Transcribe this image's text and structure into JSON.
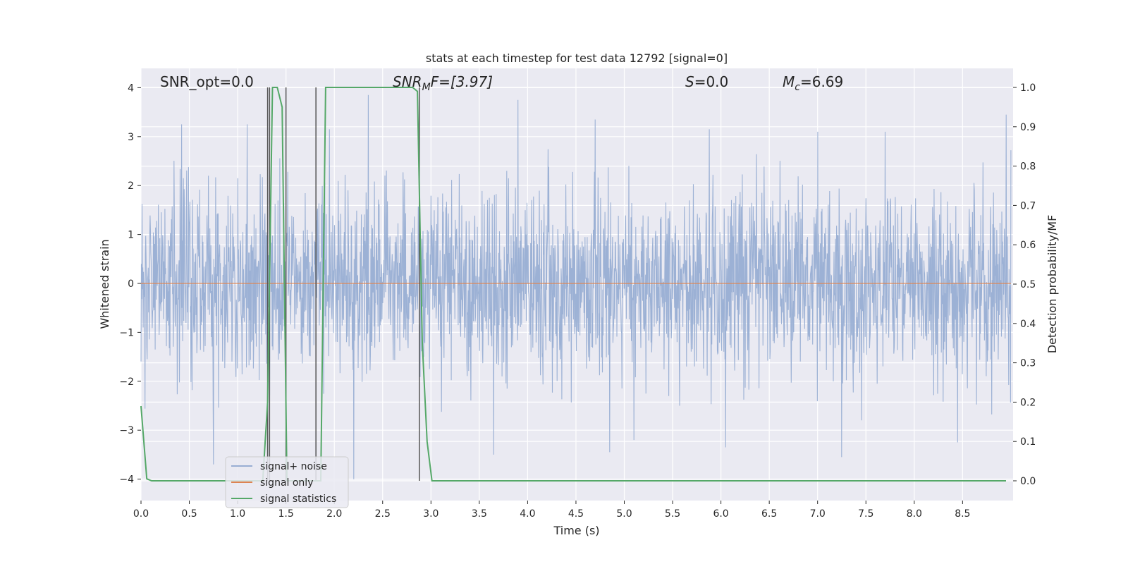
{
  "colors": {
    "plot_background": "#eaeaf2",
    "grid": "#ffffff",
    "noise": "#98aed3",
    "signal_only": "#dd8452",
    "statistics": "#55a868",
    "markers": "#555555"
  },
  "chart_data": {
    "type": "line",
    "title": "stats at each timestep for test data 12792 [signal=0]",
    "xlabel": "Time (s)",
    "ylabel": "Whitened strain",
    "y2label": "Detection probability/MF",
    "xlim": [
      0,
      9.0
    ],
    "ylim": [
      -4.4,
      4.4
    ],
    "y2lim": [
      -0.05,
      1.05
    ],
    "grid": true,
    "legend_position": "lower-left",
    "x_ticks": [
      0.0,
      0.5,
      1.0,
      1.5,
      2.0,
      2.5,
      3.0,
      3.5,
      4.0,
      4.5,
      5.0,
      5.5,
      6.0,
      6.5,
      7.0,
      7.5,
      8.0,
      8.5
    ],
    "x_tick_labels": [
      "0.0",
      "0.5",
      "1.0",
      "1.5",
      "2.0",
      "2.5",
      "3.0",
      "3.5",
      "4.0",
      "4.5",
      "5.0",
      "5.5",
      "6.0",
      "6.5",
      "7.0",
      "7.5",
      "8.0",
      "8.5"
    ],
    "y_ticks": [
      4,
      3,
      2,
      1,
      0,
      -1,
      -2,
      -3,
      -4
    ],
    "y_tick_labels": [
      "4",
      "3",
      "2",
      "1",
      "0",
      "−1",
      "−2",
      "−3",
      "−4"
    ],
    "y2_ticks": [
      1.0,
      0.9,
      0.8,
      0.7,
      0.6,
      0.5,
      0.4,
      0.3,
      0.2,
      0.1,
      0.0
    ],
    "y2_tick_labels": [
      "1.0",
      "0.9",
      "0.8",
      "0.7",
      "0.6",
      "0.5",
      "0.4",
      "0.3",
      "0.2",
      "0.1",
      "0.0"
    ],
    "annotations": {
      "snr_opt": "SNR_opt=0.0",
      "snr_mf_main": "SNR",
      "snr_mf_sub": "M",
      "snr_mf_rest": "F=[3.97]",
      "s_main": "S",
      "s_rest": "=0.0",
      "mc_main": "M",
      "mc_sub": "c",
      "mc_rest": "=6.69"
    },
    "series": [
      {
        "name": "signal+ noise",
        "kind": "noise_band",
        "typical_envelope": [
          -1.6,
          1.6
        ],
        "peaks": [
          {
            "x": 0.42,
            "y": 3.25
          },
          {
            "x": 1.1,
            "y": 3.25
          },
          {
            "x": 1.95,
            "y": 3.15
          },
          {
            "x": 2.35,
            "y": 3.85
          },
          {
            "x": 3.9,
            "y": 3.75
          },
          {
            "x": 4.7,
            "y": 3.35
          },
          {
            "x": 5.88,
            "y": 3.15
          },
          {
            "x": 7.0,
            "y": 3.1
          },
          {
            "x": 7.7,
            "y": 3.1
          },
          {
            "x": 8.95,
            "y": 3.45
          },
          {
            "x": 0.75,
            "y": -3.7
          },
          {
            "x": 2.2,
            "y": -4.0
          },
          {
            "x": 3.65,
            "y": -3.5
          },
          {
            "x": 4.85,
            "y": -3.45
          },
          {
            "x": 5.1,
            "y": -3.2
          },
          {
            "x": 6.05,
            "y": -3.35
          },
          {
            "x": 7.25,
            "y": -3.55
          },
          {
            "x": 8.45,
            "y": -3.25
          }
        ]
      },
      {
        "name": "signal only",
        "x": [
          0.0,
          9.0
        ],
        "y": [
          0.0,
          0.0
        ]
      },
      {
        "name": "signal statistics",
        "axis": "right",
        "x": [
          0.0,
          0.06,
          0.11,
          0.16,
          1.26,
          1.31,
          1.36,
          1.41,
          1.46,
          1.51,
          1.56,
          1.61,
          1.81,
          1.86,
          1.91,
          2.56,
          2.81,
          2.86,
          2.91,
          2.96,
          3.01,
          3.06,
          8.95
        ],
        "y": [
          0.19,
          0.005,
          0.0,
          0.0,
          0.0,
          0.2,
          1.0,
          1.0,
          0.95,
          0.0,
          0.0,
          0.0,
          0.0,
          0.0,
          1.0,
          1.0,
          1.0,
          0.99,
          0.35,
          0.1,
          0.0,
          0.0,
          0.0
        ]
      }
    ],
    "markers_x": [
      1.31,
      1.33,
      1.5,
      1.81,
      2.88
    ]
  }
}
